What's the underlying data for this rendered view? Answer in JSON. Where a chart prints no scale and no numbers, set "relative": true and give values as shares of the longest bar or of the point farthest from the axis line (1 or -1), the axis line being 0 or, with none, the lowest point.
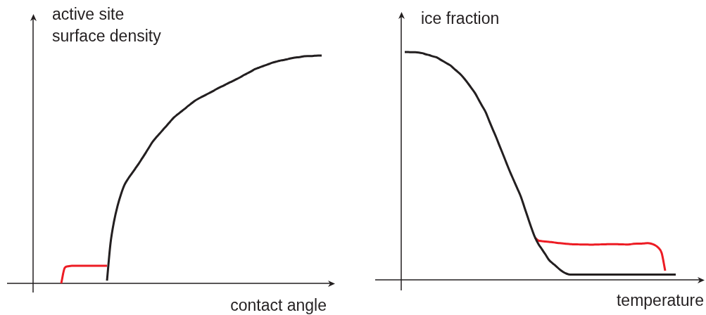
{
  "chart_data": [
    {
      "type": "line",
      "relative": true,
      "marker": "none",
      "xlabel": "contact angle",
      "ylabel": "active site surface density",
      "categories": [
        null,
        null,
        null,
        null,
        null,
        null,
        null,
        null,
        null,
        null,
        null,
        null,
        null,
        null,
        null,
        null,
        null,
        null,
        null,
        null,
        null,
        null,
        null,
        null,
        null,
        null,
        null,
        null,
        null,
        null,
        null,
        null,
        null,
        null,
        null,
        null,
        null,
        null,
        null,
        null,
        null,
        null,
        null,
        null,
        null,
        null,
        null,
        null,
        null,
        null,
        null,
        null,
        null,
        null,
        null,
        null,
        null,
        null,
        null,
        null,
        null,
        null,
        null,
        null,
        null,
        null,
        null,
        null,
        null,
        null,
        null,
        null,
        null,
        null,
        null,
        null,
        null,
        null,
        null,
        null,
        null,
        null,
        null,
        null,
        null,
        null
      ],
      "series": [
        {
          "color": "#231f20",
          "values": [
            null,
            null,
            null,
            null,
            null,
            null,
            null,
            null,
            null,
            null,
            null,
            null,
            null,
            null,
            null,
            null,
            null,
            null,
            null,
            null,
            null,
            0.012,
            0.176,
            0.272,
            0.34,
            0.392,
            0.433,
            0.459,
            0.481,
            0.503,
            0.525,
            0.549,
            0.573,
            0.598,
            0.622,
            0.641,
            0.658,
            0.676,
            0.693,
            0.711,
            0.728,
            0.741,
            0.753,
            0.765,
            0.778,
            0.79,
            0.802,
            0.811,
            0.819,
            0.827,
            0.835,
            0.843,
            0.852,
            0.86,
            0.867,
            0.875,
            0.883,
            0.89,
            0.898,
            0.906,
            0.915,
            0.923,
            0.931,
            0.94,
            0.946,
            0.952,
            0.957,
            0.963,
            0.969,
            0.973,
            0.977,
            0.98,
            0.983,
            0.987,
            0.99,
            0.992,
            0.994,
            0.997,
            0.998,
            0.998,
            0.999,
            1.0,
            1.0,
            null,
            null,
            null
          ]
        },
        {
          "color": "#ed1c24",
          "values": [
            null,
            null,
            null,
            null,
            null,
            null,
            null,
            null,
            0.0,
            0.068,
            0.075,
            0.077,
            0.077,
            0.077,
            0.077,
            0.077,
            0.077,
            0.077,
            0.077,
            0.077,
            0.077,
            0.077,
            null,
            null,
            null,
            null,
            null,
            null,
            null,
            null,
            null,
            null,
            null,
            null,
            null,
            null,
            null,
            null,
            null,
            null,
            null,
            null,
            null,
            null,
            null,
            null,
            null,
            null,
            null,
            null,
            null,
            null,
            null,
            null,
            null,
            null,
            null,
            null,
            null,
            null,
            null,
            null,
            null,
            null,
            null,
            null,
            null,
            null,
            null,
            null,
            null,
            null,
            null,
            null,
            null,
            null,
            null,
            null,
            null,
            null,
            null,
            null,
            null,
            null,
            null,
            null
          ]
        }
      ]
    },
    {
      "type": "line",
      "relative": true,
      "marker": "none",
      "xlabel": "temperature",
      "ylabel": "ice fraction",
      "categories": [
        null,
        null,
        null,
        null,
        null,
        null,
        null,
        null,
        null,
        null,
        null,
        null,
        null,
        null,
        null,
        null,
        null,
        null,
        null,
        null,
        null,
        null,
        null,
        null,
        null,
        null,
        null,
        null,
        null,
        null,
        null,
        null,
        null,
        null,
        null,
        null,
        null,
        null,
        null,
        null,
        null,
        null,
        null,
        null,
        null,
        null,
        null,
        null,
        null,
        null,
        null,
        null,
        null,
        null,
        null,
        null,
        null,
        null,
        null,
        null,
        null,
        null,
        null,
        null,
        null,
        null,
        null,
        null,
        null,
        null,
        null,
        null,
        null,
        null,
        null,
        null,
        null,
        null,
        null,
        null,
        null,
        null,
        null,
        null,
        null,
        null
      ],
      "series": [
        {
          "color": "#231f20",
          "values": [
            null,
            1.0,
            1.0,
            0.999,
            0.999,
            0.998,
            0.995,
            0.99,
            0.986,
            0.981,
            0.977,
            0.968,
            0.959,
            0.95,
            0.941,
            0.927,
            0.914,
            0.9,
            0.882,
            0.862,
            0.841,
            0.819,
            0.791,
            0.763,
            0.736,
            0.698,
            0.661,
            0.625,
            0.586,
            0.548,
            0.509,
            0.471,
            0.436,
            0.401,
            0.365,
            0.319,
            0.273,
            0.228,
            0.187,
            0.157,
            0.134,
            0.111,
            0.087,
            0.073,
            0.06,
            0.046,
            0.035,
            0.027,
            0.023,
            0.023,
            0.023,
            0.023,
            0.023,
            0.023,
            0.023,
            0.023,
            0.023,
            0.023,
            0.023,
            0.023,
            0.023,
            0.023,
            0.023,
            0.023,
            0.023,
            0.023,
            0.023,
            0.023,
            0.023,
            0.023,
            0.023,
            0.023,
            0.023,
            0.023,
            0.023,
            0.023,
            0.023,
            0.023,
            0.023,
            null,
            null,
            null,
            null,
            null,
            null,
            null
          ]
        },
        {
          "color": "#ed1c24",
          "values": [
            null,
            null,
            null,
            null,
            null,
            null,
            null,
            null,
            null,
            null,
            null,
            null,
            null,
            null,
            null,
            null,
            null,
            null,
            null,
            null,
            null,
            null,
            null,
            null,
            null,
            null,
            null,
            null,
            null,
            null,
            null,
            null,
            null,
            null,
            null,
            null,
            null,
            null,
            0.185,
            0.172,
            0.17,
            0.168,
            0.167,
            0.165,
            0.163,
            0.161,
            0.16,
            0.158,
            0.157,
            0.156,
            0.156,
            0.155,
            0.155,
            0.155,
            0.154,
            0.155,
            0.155,
            0.156,
            0.156,
            0.157,
            0.157,
            0.157,
            0.156,
            0.156,
            0.155,
            0.156,
            0.158,
            0.159,
            0.159,
            0.16,
            0.161,
            0.159,
            0.153,
            0.142,
            0.118,
            0.04,
            null,
            null,
            null,
            null,
            null,
            null,
            null,
            null,
            null,
            null
          ]
        }
      ]
    }
  ]
}
